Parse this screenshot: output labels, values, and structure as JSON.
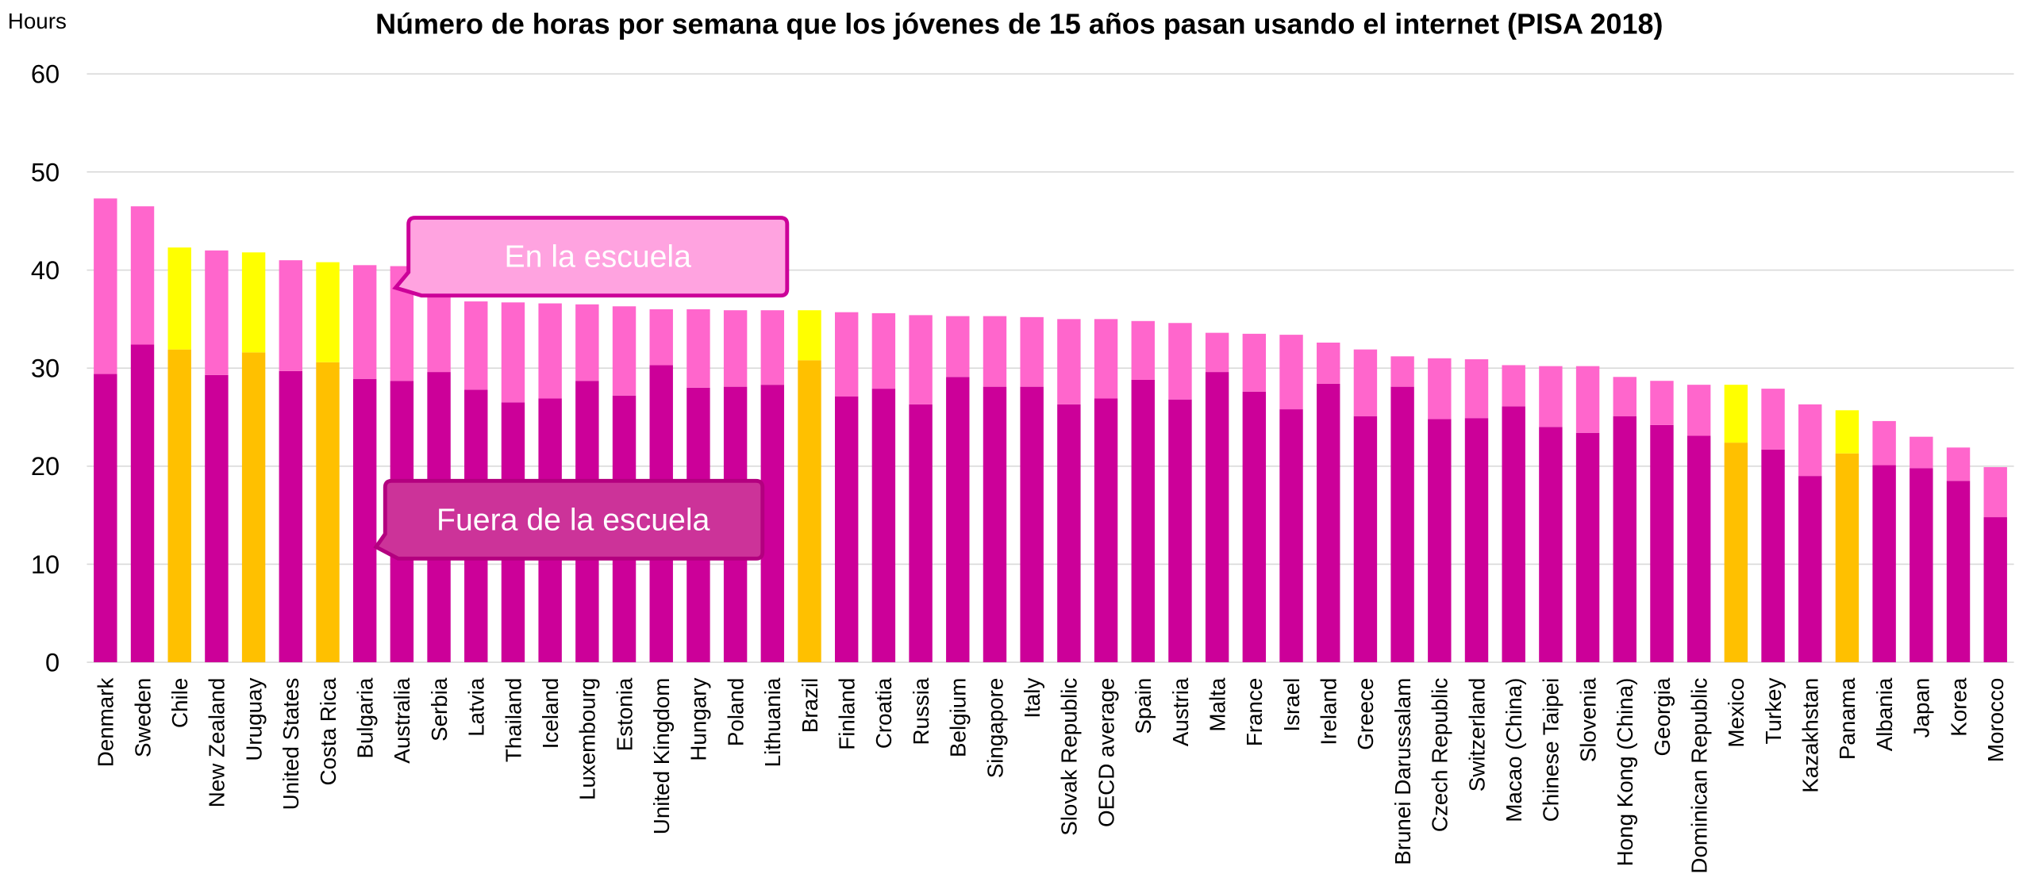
{
  "chart_data": {
    "type": "stacked_bar",
    "title": "Número de horas por semana que los jóvenes de 15 años pasan usando el internet (PISA 2018)",
    "y_label": "Hours",
    "categories": [
      "Denmark",
      "Sweden",
      "Chile",
      "New Zealand",
      "Uruguay",
      "United States",
      "Costa Rica",
      "Bulgaria",
      "Australia",
      "Serbia",
      "Latvia",
      "Thailand",
      "Iceland",
      "Luxembourg",
      "Estonia",
      "United Kingdom",
      "Hungary",
      "Poland",
      "Lithuania",
      "Brazil",
      "Finland",
      "Croatia",
      "Russia",
      "Belgium",
      "Singapore",
      "Italy",
      "Slovak Republic",
      "OECD average",
      "Spain",
      "Austria",
      "Malta",
      "France",
      "Israel",
      "Ireland",
      "Greece",
      "Brunei Darussalam",
      "Czech Republic",
      "Switzerland",
      "Macao (China)",
      "Chinese Taipei",
      "Slovenia",
      "Hong Kong (China)",
      "Georgia",
      "Dominican Republic",
      "Mexico",
      "Turkey",
      "Kazakhstan",
      "Panama",
      "Albania",
      "Japan",
      "Korea",
      "Morocco"
    ],
    "highlighted_categories": [
      "Chile",
      "Uruguay",
      "Costa Rica",
      "Brazil",
      "Mexico",
      "Panama"
    ],
    "series": [
      {
        "name": "Fuera de la escuela",
        "color": "#cc0099",
        "highlight_color": "#ffc000",
        "values": [
          29.4,
          32.4,
          31.9,
          29.3,
          31.6,
          29.7,
          30.6,
          28.9,
          28.7,
          29.6,
          27.8,
          26.5,
          26.9,
          28.7,
          27.2,
          30.3,
          28.0,
          28.1,
          28.3,
          30.8,
          27.1,
          27.9,
          26.3,
          29.1,
          28.1,
          28.1,
          26.3,
          26.9,
          28.8,
          26.8,
          29.6,
          27.6,
          25.8,
          28.4,
          25.1,
          28.1,
          24.8,
          24.9,
          26.1,
          24.0,
          23.4,
          25.1,
          24.2,
          23.1,
          22.4,
          21.7,
          19.0,
          21.3,
          20.1,
          19.8,
          18.5,
          14.8
        ]
      },
      {
        "name": "En la escuela",
        "color": "#ff66cc",
        "highlight_color": "#ffff00",
        "values": [
          17.9,
          14.1,
          10.4,
          12.7,
          10.2,
          11.3,
          10.2,
          11.6,
          11.7,
          7.9,
          9.0,
          10.2,
          9.7,
          7.8,
          9.1,
          5.7,
          8.0,
          7.8,
          7.6,
          5.1,
          8.6,
          7.7,
          9.1,
          6.2,
          7.2,
          7.1,
          8.7,
          8.1,
          6.0,
          7.8,
          4.0,
          5.9,
          7.6,
          4.2,
          6.8,
          3.1,
          6.2,
          6.0,
          4.2,
          6.2,
          6.8,
          4.0,
          4.5,
          5.2,
          5.9,
          6.2,
          7.3,
          4.4,
          4.5,
          3.2,
          3.4,
          5.1
        ]
      }
    ],
    "ylim": [
      0,
      60
    ],
    "yticks": [
      0,
      10,
      20,
      30,
      40,
      50,
      60
    ],
    "grid": true
  }
}
